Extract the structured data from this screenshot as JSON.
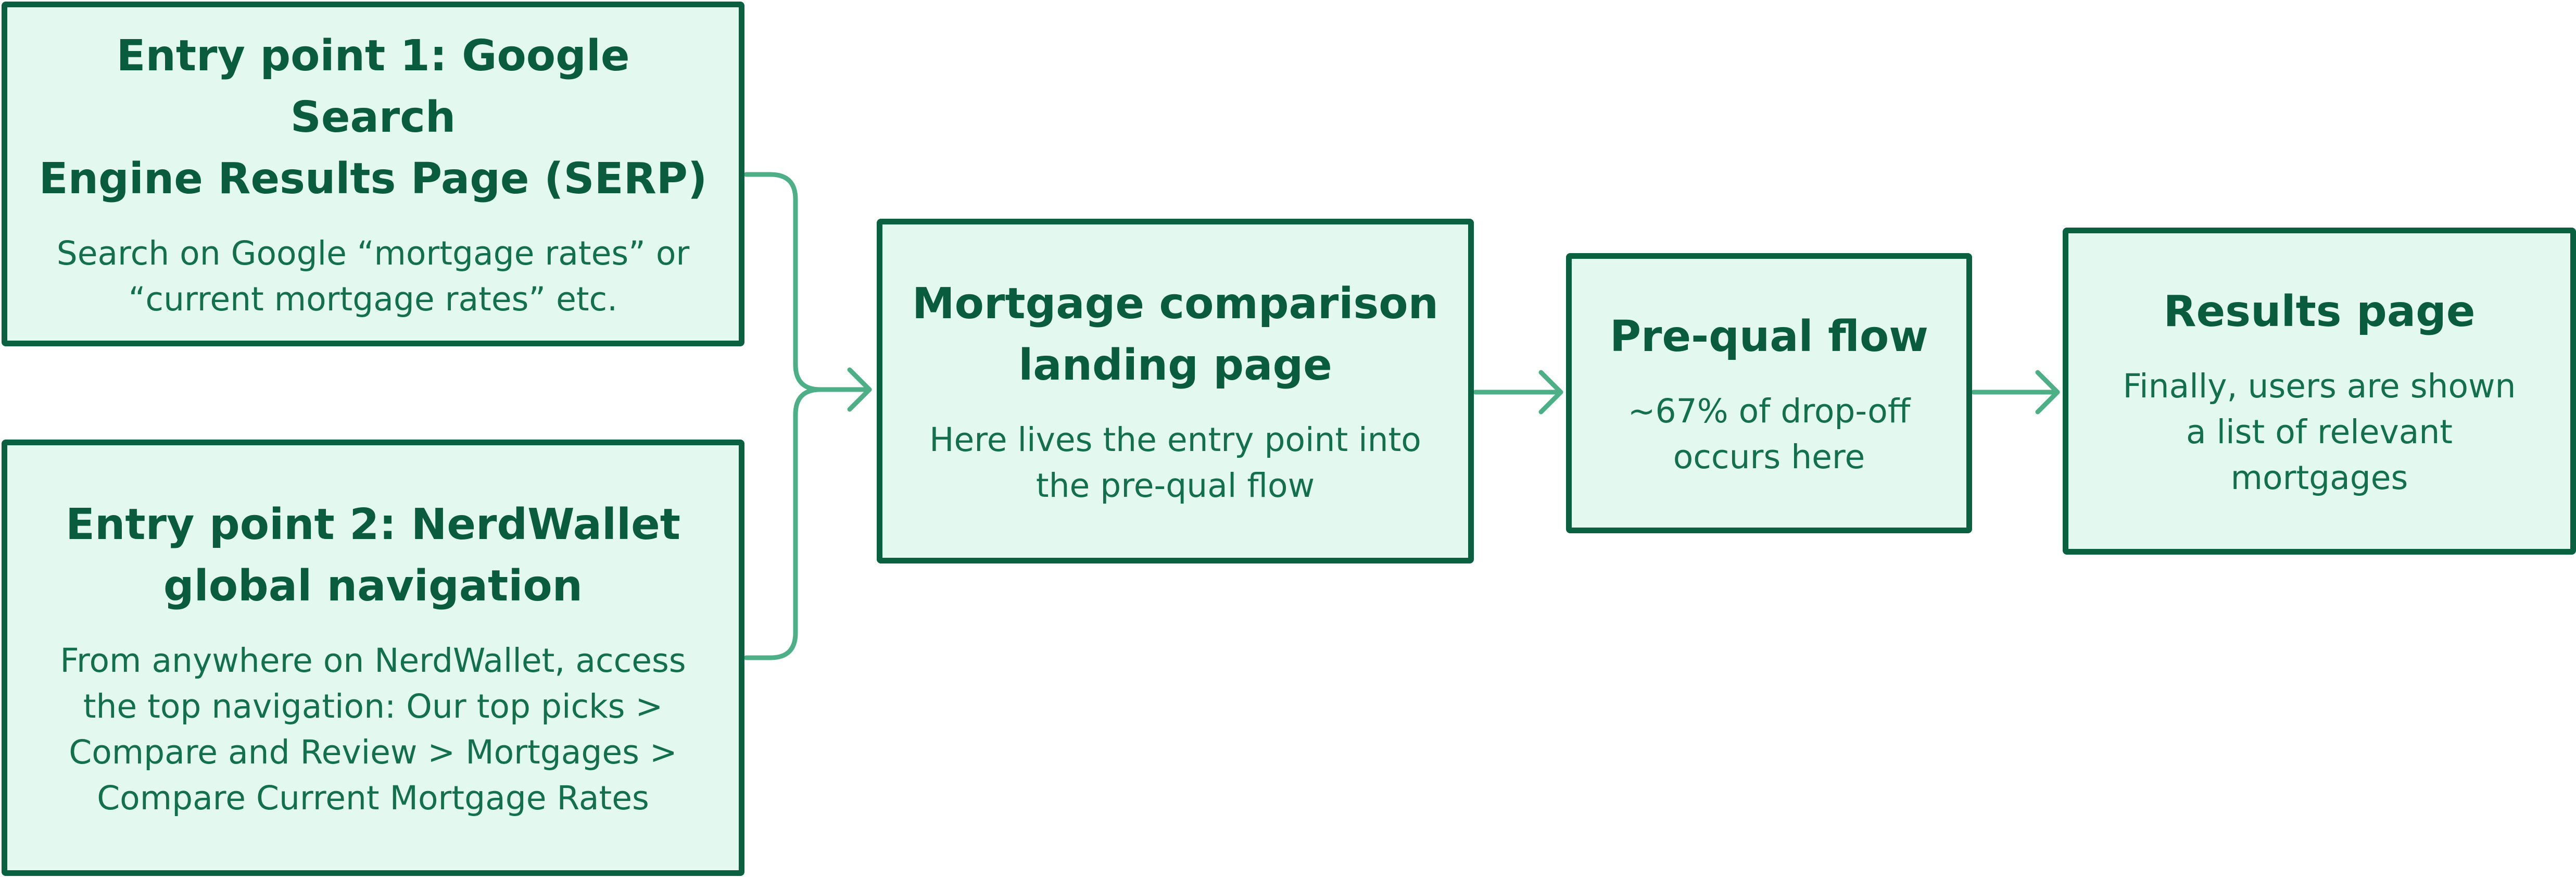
{
  "colors": {
    "box_fill": "#e3f8ef",
    "box_border": "#0a6141",
    "title_text": "#0a5c3e",
    "body_text": "#13704c",
    "connector": "#4caf85"
  },
  "nodes": {
    "entry_1": {
      "title": [
        "Entry point 1: Google Search",
        "Engine Results Page (SERP)"
      ],
      "description": [
        "Search on Google “mortgage rates” or",
        "“current mortgage rates” etc."
      ]
    },
    "entry_2": {
      "title": [
        "Entry point 2: NerdWallet",
        "global navigation"
      ],
      "description": [
        "From anywhere on NerdWallet, access",
        "the top navigation: Our top picks >",
        "Compare and Review > Mortgages >",
        "Compare Current Mortgage Rates"
      ]
    },
    "landing": {
      "title": [
        "Mortgage comparison",
        "landing page"
      ],
      "description": [
        "Here lives the entry point into",
        "the pre-qual flow"
      ]
    },
    "prequal": {
      "title": [
        "Pre-qual flow"
      ],
      "description": [
        "~67% of drop-off",
        "occurs here"
      ]
    },
    "results": {
      "title": [
        "Results page"
      ],
      "description": [
        "Finally, users are shown",
        "a list of relevant",
        "mortgages"
      ]
    }
  },
  "edges": [
    {
      "from": "entry_1",
      "to": "landing"
    },
    {
      "from": "entry_2",
      "to": "landing"
    },
    {
      "from": "landing",
      "to": "prequal"
    },
    {
      "from": "prequal",
      "to": "results"
    }
  ]
}
